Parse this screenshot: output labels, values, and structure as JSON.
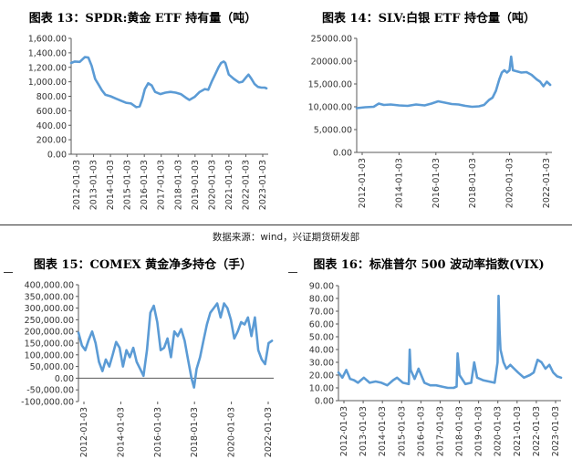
{
  "source_note": "数据来源：wind，兴证期货研发部",
  "chart_data": [
    {
      "id": "c13",
      "type": "line",
      "title": "图表 13：SPDR:黄金 ETF 持有量（吨）",
      "xlabel": "",
      "ylabel": "",
      "ylim": [
        0,
        1600
      ],
      "yticks": [
        "1,600.00",
        "1,400.00",
        "1,200.00",
        "1,000.00",
        "800.00",
        "600.00",
        "400.00",
        "200.00",
        "0.00"
      ],
      "yvalues": [
        1600,
        1400,
        1200,
        1000,
        800,
        600,
        400,
        200,
        0
      ],
      "xticks": [
        "2012-01-03",
        "2013-01-03",
        "2014-01-03",
        "2015-01-03",
        "2016-01-03",
        "2017-01-03",
        "2018-01-03",
        "2019-01-03",
        "2020-01-03",
        "2021-01-03",
        "2022-01-03",
        "2023-01-03"
      ],
      "xlim": [
        2012.0,
        2023.5
      ],
      "grid": false,
      "color": "#5b9bd5",
      "series": [
        {
          "x": [
            2012.0,
            2012.2,
            2012.5,
            2012.8,
            2013.0,
            2013.2,
            2013.4,
            2013.6,
            2013.8,
            2014.0,
            2014.3,
            2014.6,
            2014.9,
            2015.2,
            2015.5,
            2015.8,
            2016.0,
            2016.15,
            2016.3,
            2016.5,
            2016.7,
            2016.9,
            2017.2,
            2017.5,
            2017.8,
            2018.1,
            2018.4,
            2018.7,
            2018.9,
            2019.2,
            2019.5,
            2019.8,
            2020.0,
            2020.2,
            2020.4,
            2020.6,
            2020.75,
            2020.9,
            2021.0,
            2021.2,
            2021.5,
            2021.8,
            2022.0,
            2022.2,
            2022.35,
            2022.5,
            2022.7,
            2022.9,
            2023.1,
            2023.3,
            2023.4
          ],
          "y": [
            1260,
            1280,
            1275,
            1340,
            1335,
            1220,
            1040,
            960,
            880,
            820,
            800,
            770,
            740,
            710,
            700,
            650,
            660,
            760,
            900,
            980,
            950,
            860,
            830,
            850,
            860,
            850,
            830,
            780,
            750,
            790,
            860,
            900,
            890,
            1000,
            1100,
            1200,
            1260,
            1280,
            1260,
            1100,
            1040,
            990,
            1000,
            1060,
            1100,
            1050,
            970,
            930,
            920,
            920,
            910
          ]
        }
      ]
    },
    {
      "id": "c14",
      "type": "line",
      "title": "图表 14：SLV:白银 ETF 持仓量（吨）",
      "xlabel": "",
      "ylabel": "",
      "ylim": [
        0,
        25000
      ],
      "yticks": [
        "25000.00",
        "20000.00",
        "15,000.00",
        "10,000.00",
        "5,000.00",
        "0.00"
      ],
      "yvalues": [
        25000,
        20000,
        15000,
        10000,
        5000,
        0
      ],
      "xticks": [
        "2012-01-03",
        "2014-01-03",
        "2016-01-03",
        "2018-01-03",
        "2020-01-03",
        "2022-01-03"
      ],
      "xlim": [
        2012.0,
        2023.5
      ],
      "grid": false,
      "color": "#5b9bd5",
      "series": [
        {
          "x": [
            2012.0,
            2012.5,
            2013.0,
            2013.3,
            2013.6,
            2014.0,
            2014.5,
            2015.0,
            2015.5,
            2016.0,
            2016.4,
            2016.8,
            2017.2,
            2017.6,
            2018.0,
            2018.4,
            2018.8,
            2019.2,
            2019.5,
            2019.8,
            2020.0,
            2020.2,
            2020.4,
            2020.55,
            2020.7,
            2020.85,
            2021.0,
            2021.1,
            2021.2,
            2021.4,
            2021.7,
            2022.0,
            2022.3,
            2022.6,
            2022.8,
            2023.0,
            2023.2,
            2023.4
          ],
          "y": [
            9700,
            9900,
            10000,
            10700,
            10400,
            10500,
            10300,
            10200,
            10500,
            10300,
            10700,
            11200,
            10900,
            10600,
            10500,
            10200,
            10000,
            10100,
            10400,
            11500,
            12000,
            13500,
            16000,
            17500,
            18000,
            17500,
            18000,
            21000,
            18000,
            17800,
            17500,
            17600,
            17000,
            16000,
            15500,
            14500,
            15500,
            14800
          ]
        }
      ]
    },
    {
      "id": "c15",
      "type": "line",
      "title": "图表 15：COMEX 黄金净多持仓（手）",
      "xlabel": "",
      "ylabel": "",
      "ylim": [
        -100000,
        400000
      ],
      "yticks": [
        "400,000.00",
        "350,000.00",
        "300,000.00",
        "250,000.00",
        "200,000.00",
        "150,000.00",
        "100,000.00",
        "50,000.00",
        "0.00",
        "-50,000.00",
        "-100,000.00"
      ],
      "yvalues": [
        400000,
        350000,
        300000,
        250000,
        200000,
        150000,
        100000,
        50000,
        0,
        -50000,
        -100000
      ],
      "xticks": [
        "2012-01-03",
        "2014-01-03",
        "2016-01-03",
        "2018-01-03",
        "2020-01-03",
        "2022-01-03"
      ],
      "xlim": [
        2012.0,
        2023.4
      ],
      "grid": false,
      "color": "#5b9bd5",
      "series": [
        {
          "x": [
            2012.0,
            2012.2,
            2012.4,
            2012.6,
            2012.8,
            2013.0,
            2013.2,
            2013.4,
            2013.6,
            2013.8,
            2014.0,
            2014.2,
            2014.4,
            2014.6,
            2014.8,
            2015.0,
            2015.2,
            2015.4,
            2015.6,
            2015.8,
            2016.0,
            2016.2,
            2016.4,
            2016.6,
            2016.8,
            2017.0,
            2017.2,
            2017.4,
            2017.6,
            2017.8,
            2018.0,
            2018.2,
            2018.4,
            2018.6,
            2018.75,
            2018.9,
            2019.1,
            2019.3,
            2019.5,
            2019.7,
            2019.9,
            2020.1,
            2020.3,
            2020.5,
            2020.7,
            2020.9,
            2021.1,
            2021.3,
            2021.5,
            2021.7,
            2021.9,
            2022.1,
            2022.3,
            2022.5,
            2022.7,
            2022.9,
            2023.1,
            2023.3
          ],
          "y": [
            195000,
            140000,
            120000,
            165000,
            200000,
            150000,
            70000,
            30000,
            80000,
            50000,
            100000,
            155000,
            130000,
            50000,
            120000,
            90000,
            130000,
            70000,
            40000,
            10000,
            120000,
            280000,
            310000,
            240000,
            120000,
            130000,
            170000,
            90000,
            200000,
            180000,
            210000,
            160000,
            80000,
            0,
            -40000,
            40000,
            90000,
            160000,
            230000,
            280000,
            300000,
            320000,
            260000,
            320000,
            300000,
            250000,
            170000,
            200000,
            240000,
            230000,
            260000,
            180000,
            260000,
            120000,
            80000,
            60000,
            150000,
            160000
          ]
        }
      ]
    },
    {
      "id": "c16",
      "type": "line",
      "title": "图表 16：标准普尔 500 波动率指数(VIX)",
      "xlabel": "",
      "ylabel": "",
      "ylim": [
        0,
        90
      ],
      "yticks": [
        "90.00",
        "80.00",
        "70.00",
        "60.00",
        "50.00",
        "40.00",
        "30.00",
        "20.00",
        "10.00",
        "0.00"
      ],
      "yvalues": [
        90,
        80,
        70,
        60,
        50,
        40,
        30,
        20,
        10,
        0
      ],
      "xticks": [
        "2012-01-03",
        "2013-01-03",
        "2014-01-03",
        "2015-01-03",
        "2016-01-03",
        "2017-01-03",
        "2018-01-03",
        "2019-01-03",
        "2020-01-03",
        "2021-01-03",
        "2022-01-03",
        "2023-01-03"
      ],
      "xlim": [
        2012.0,
        2023.4
      ],
      "grid": false,
      "color": "#5b9bd5",
      "series": [
        {
          "x": [
            2012.0,
            2012.2,
            2012.4,
            2012.6,
            2012.8,
            2013.0,
            2013.3,
            2013.6,
            2013.9,
            2014.2,
            2014.5,
            2014.8,
            2015.0,
            2015.3,
            2015.6,
            2015.65,
            2015.7,
            2015.9,
            2016.1,
            2016.4,
            2016.7,
            2017.0,
            2017.3,
            2017.6,
            2017.9,
            2018.05,
            2018.1,
            2018.2,
            2018.5,
            2018.8,
            2018.95,
            2019.1,
            2019.4,
            2019.7,
            2020.0,
            2020.15,
            2020.2,
            2020.25,
            2020.3,
            2020.45,
            2020.6,
            2020.8,
            2021.0,
            2021.2,
            2021.5,
            2021.8,
            2022.0,
            2022.2,
            2022.4,
            2022.6,
            2022.8,
            2023.0,
            2023.2,
            2023.4
          ],
          "y": [
            22,
            18,
            24,
            17,
            16,
            14,
            18,
            14,
            15,
            14,
            12,
            16,
            18,
            14,
            13,
            40,
            24,
            17,
            25,
            14,
            12,
            12,
            11,
            10,
            10,
            11,
            37,
            20,
            13,
            14,
            30,
            18,
            16,
            15,
            14,
            30,
            82,
            55,
            40,
            30,
            25,
            28,
            25,
            22,
            18,
            20,
            22,
            32,
            30,
            25,
            28,
            22,
            19,
            18
          ]
        }
      ]
    }
  ]
}
